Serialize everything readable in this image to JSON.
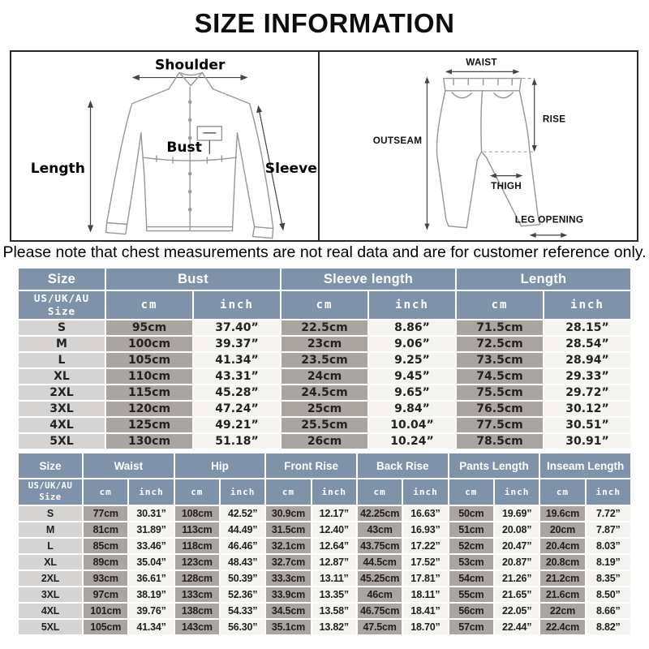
{
  "title": "SIZE INFORMATION",
  "note": "Please note that chest measurements are not real data and are for customer reference only.",
  "colors": {
    "header_bg": "#7e93aa",
    "cm_cell_bg": "#a9a6a1",
    "inch_cell_bg": "#f5f4f1",
    "size_cell_bg": "#d5d4d2",
    "box_border": "#2a2a2a"
  },
  "diagrams": {
    "shirt": {
      "shoulder": "Shoulder",
      "length": "Length",
      "bust": "Bust",
      "sleeve": "Sleeve"
    },
    "pants": {
      "waist": "WAIST",
      "rise": "RISE",
      "outseam": "OUTSEAM",
      "thigh": "THIGH",
      "leg_opening": "LEG OPENING"
    }
  },
  "shirt_table": {
    "header1": [
      "Size",
      "Bust",
      "Sleeve length",
      "Length"
    ],
    "header2": [
      "US/UK/AU Size",
      "cm",
      "inch",
      "cm",
      "inch",
      "cm",
      "inch"
    ],
    "rows": [
      [
        "S",
        "95cm",
        "37.40”",
        "22.5cm",
        "8.86”",
        "71.5cm",
        "28.15”"
      ],
      [
        "M",
        "100cm",
        "39.37”",
        "23cm",
        "9.06”",
        "72.5cm",
        "28.54”"
      ],
      [
        "L",
        "105cm",
        "41.34”",
        "23.5cm",
        "9.25”",
        "73.5cm",
        "28.94”"
      ],
      [
        "XL",
        "110cm",
        "43.31”",
        "24cm",
        "9.45”",
        "74.5cm",
        "29.33”"
      ],
      [
        "2XL",
        "115cm",
        "45.28”",
        "24.5cm",
        "9.65”",
        "75.5cm",
        "29.72”"
      ],
      [
        "3XL",
        "120cm",
        "47.24”",
        "25cm",
        "9.84”",
        "76.5cm",
        "30.12”"
      ],
      [
        "4XL",
        "125cm",
        "49.21”",
        "25.5cm",
        "10.04”",
        "77.5cm",
        "30.51”"
      ],
      [
        "5XL",
        "130cm",
        "51.18”",
        "26cm",
        "10.24”",
        "78.5cm",
        "30.91”"
      ]
    ]
  },
  "pants_table": {
    "header1": [
      "Size",
      "Waist",
      "Hip",
      "Front Rise",
      "Back Rise",
      "Pants Length",
      "Inseam Length"
    ],
    "header2": [
      "US/UK/AU Size",
      "cm",
      "inch",
      "cm",
      "inch",
      "cm",
      "inch",
      "cm",
      "inch",
      "cm",
      "inch",
      "cm",
      "inch"
    ],
    "rows": [
      [
        "S",
        "77cm",
        "30.31”",
        "108cm",
        "42.52”",
        "30.9cm",
        "12.17”",
        "42.25cm",
        "16.63”",
        "50cm",
        "19.69”",
        "19.6cm",
        "7.72”"
      ],
      [
        "M",
        "81cm",
        "31.89”",
        "113cm",
        "44.49”",
        "31.5cm",
        "12.40”",
        "43cm",
        "16.93”",
        "51cm",
        "20.08”",
        "20cm",
        "7.87”"
      ],
      [
        "L",
        "85cm",
        "33.46”",
        "118cm",
        "46.46”",
        "32.1cm",
        "12.64”",
        "43.75cm",
        "17.22”",
        "52cm",
        "20.47”",
        "20.4cm",
        "8.03”"
      ],
      [
        "XL",
        "89cm",
        "35.04”",
        "123cm",
        "48.43”",
        "32.7cm",
        "12.87”",
        "44.5cm",
        "17.52”",
        "53cm",
        "20.87”",
        "20.8cm",
        "8.19”"
      ],
      [
        "2XL",
        "93cm",
        "36.61”",
        "128cm",
        "50.39”",
        "33.3cm",
        "13.11”",
        "45.25cm",
        "17.81”",
        "54cm",
        "21.26”",
        "21.2cm",
        "8.35”"
      ],
      [
        "3XL",
        "97cm",
        "38.19”",
        "133cm",
        "52.36”",
        "33.9cm",
        "13.35”",
        "46cm",
        "18.11”",
        "55cm",
        "21.65”",
        "21.6cm",
        "8.50”"
      ],
      [
        "4XL",
        "101cm",
        "39.76”",
        "138cm",
        "54.33”",
        "34.5cm",
        "13.58”",
        "46.75cm",
        "18.41”",
        "56cm",
        "22.05”",
        "22cm",
        "8.66”"
      ],
      [
        "5XL",
        "105cm",
        "41.34”",
        "143cm",
        "56.30”",
        "35.1cm",
        "13.82”",
        "47.5cm",
        "18.70”",
        "57cm",
        "22.44”",
        "22.4cm",
        "8.82”"
      ]
    ]
  }
}
